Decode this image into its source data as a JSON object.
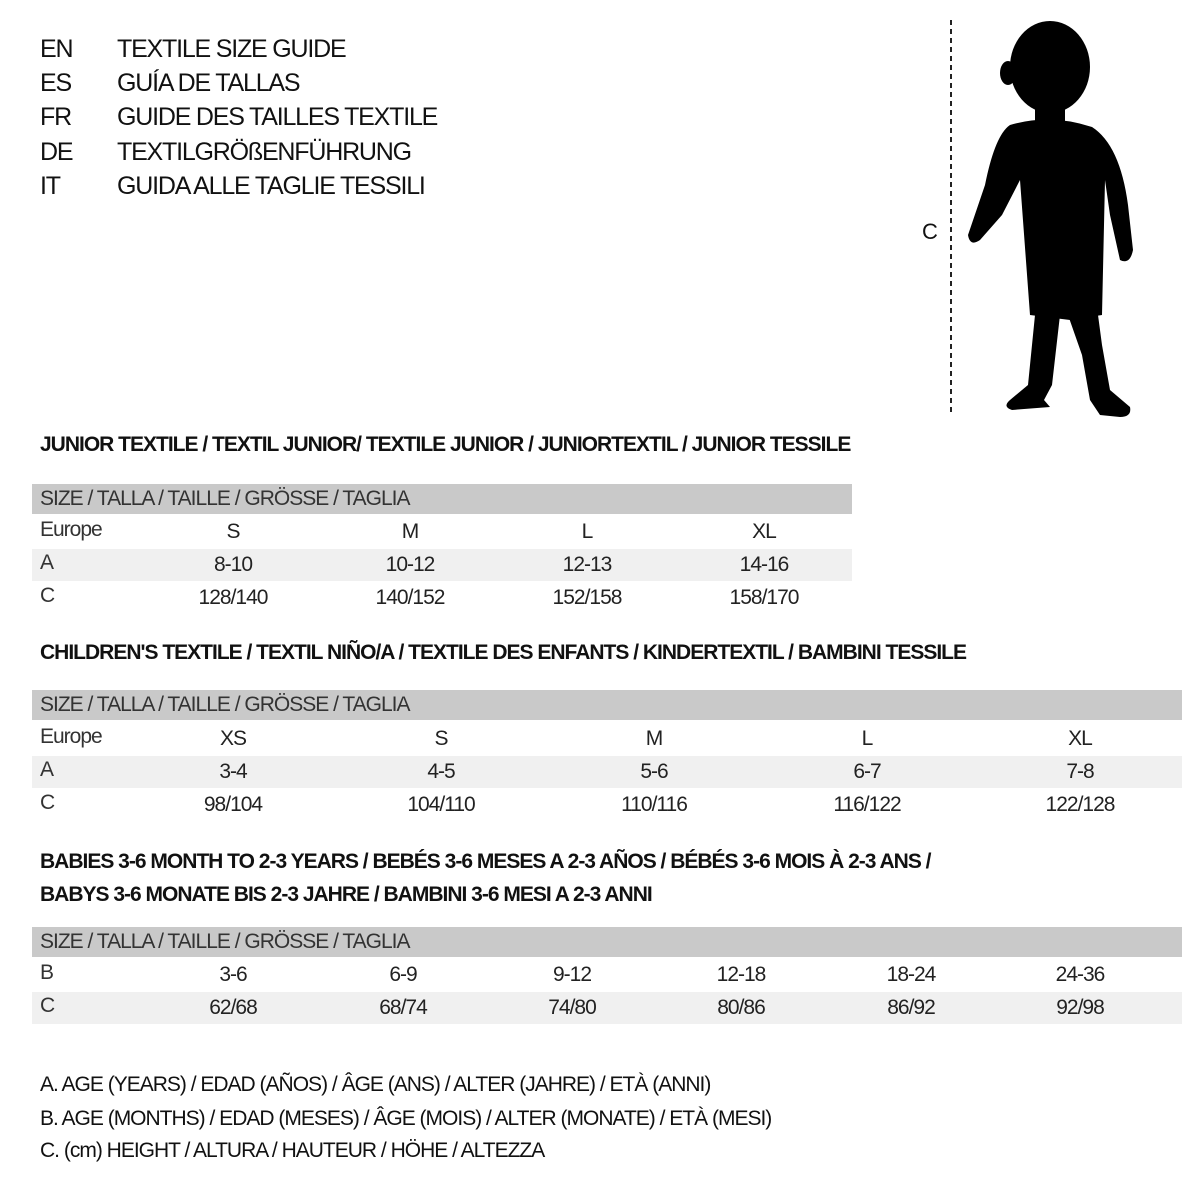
{
  "titles": [
    {
      "code": "EN",
      "text": "TEXTILE SIZE GUIDE"
    },
    {
      "code": "ES",
      "text": "GUÍA DE TALLAS"
    },
    {
      "code": "FR",
      "text": "GUIDE DES TAILLES TEXTILE"
    },
    {
      "code": "DE",
      "text": "TEXTILGRÖßENFÜHRUNG"
    },
    {
      "code": "IT",
      "text": "GUIDA ALLE TAGLIE TESSILI"
    }
  ],
  "figure": {
    "measure_label": "C",
    "icon": "child-silhouette"
  },
  "junior": {
    "heading": "JUNIOR TEXTILE / TEXTIL JUNIOR/ TEXTILE JUNIOR / JUNIORTEXTIL / JUNIOR TESSILE",
    "band": "SIZE / TALLA / TAILLE / GRÖSSE / TAGLIA",
    "rows": [
      {
        "label": "Europe",
        "cells": [
          "S",
          "M",
          "L",
          "XL"
        ]
      },
      {
        "label": "A",
        "cells": [
          "8-10",
          "10-12",
          "12-13",
          "14-16"
        ]
      },
      {
        "label": "C",
        "cells": [
          "128/140",
          "140/152",
          "152/158",
          "158/170"
        ]
      }
    ]
  },
  "children": {
    "heading": "CHILDREN'S TEXTILE / TEXTIL NIÑO/A / TEXTILE DES ENFANTS / KINDERTEXTIL / BAMBINI TESSILE",
    "band": "SIZE / TALLA / TAILLE / GRÖSSE / TAGLIA",
    "rows": [
      {
        "label": "Europe",
        "cells": [
          "XS",
          "S",
          "M",
          "L",
          "XL"
        ]
      },
      {
        "label": "A",
        "cells": [
          "3-4",
          "4-5",
          "5-6",
          "6-7",
          "7-8"
        ]
      },
      {
        "label": "C",
        "cells": [
          "98/104",
          "104/110",
          "110/116",
          "116/122",
          "122/128"
        ]
      }
    ]
  },
  "babies": {
    "heading_1": "BABIES 3-6 MONTH TO 2-3 YEARS / BEBÉS 3-6 MESES A 2-3 AÑOS / BÉBÉS 3-6 MOIS À 2-3 ANS /",
    "heading_2": "BABYS 3-6 MONATE BIS 2-3 JAHRE / BAMBINI 3-6 MESI A 2-3 ANNI",
    "band": "SIZE / TALLA / TAILLE / GRÖSSE / TAGLIA",
    "rows": [
      {
        "label": "B",
        "cells": [
          "3-6",
          "6-9",
          "9-12",
          "12-18",
          "18-24",
          "24-36"
        ]
      },
      {
        "label": "C",
        "cells": [
          "62/68",
          "68/74",
          "74/80",
          "80/86",
          "86/92",
          "92/98"
        ]
      }
    ]
  },
  "legend": [
    "A. AGE (YEARS) / EDAD (AÑOS) / ÂGE (ANS) / ALTER (JAHRE) / ETÀ (ANNI)",
    "B. AGE (MONTHS) / EDAD (MESES) / ÂGE (MOIS) / ALTER (MONATE) / ETÀ (MESI)",
    "C. (cm) HEIGHT / ALTURA / HAUTEUR / HÖHE / ALTEZZA"
  ]
}
